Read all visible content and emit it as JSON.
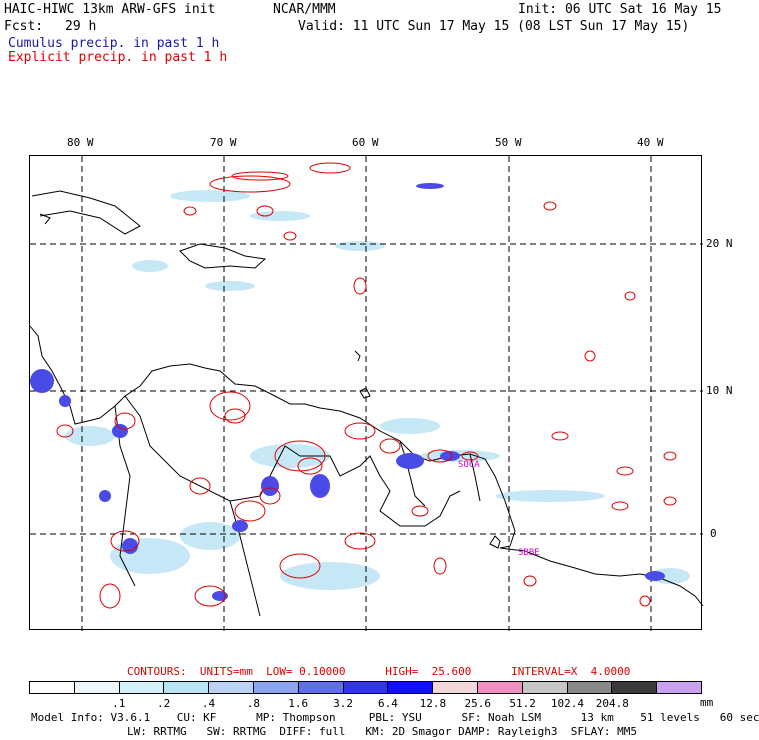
{
  "header": {
    "model": "HAIC-HIWC 13km ARW-GFS init",
    "org": "NCAR/MMM",
    "init": "Init: 06 UTC Sat 16 May 15",
    "fcst_label": "Fcst:",
    "fcst_value": "29 h",
    "valid": "Valid: 11 UTC Sun 17 May 15 (08 LST Sun 17 May 15)",
    "cumulus": "Cumulus precip. in past 1 h",
    "explicit": "Explicit precip. in past 1 h"
  },
  "map": {
    "lon_labels": [
      "80 W",
      "70 W",
      "60 W",
      "50 W",
      "40 W"
    ],
    "lat_labels": [
      "20 N",
      "10 N",
      "0"
    ],
    "station_labels": [
      "SOCA",
      "SBBE"
    ],
    "colors": {
      "cumulus": "#4040e0",
      "explicit": "#e00000",
      "light_blue": "#aee0f5"
    }
  },
  "footer": {
    "contours": "CONTOURS:  UNITS=mm  LOW= 0.10000      HIGH=  25.600      INTERVAL=X  4.0000",
    "colorbar": {
      "colors": [
        "#ffffff",
        "#eef8fc",
        "#d4f0f8",
        "#b8e4f4",
        "#b9d2f5",
        "#8ca4f0",
        "#6070ec",
        "#3036e8",
        "#1010f0",
        "#f2d6da",
        "#f090c0",
        "#c6c6c6",
        "#888888",
        "#3a3a3a",
        "#caa0f0"
      ],
      "labels": [
        ".1",
        ".2",
        ".4",
        ".8",
        "1.6",
        "3.2",
        "6.4",
        "12.8",
        "25.6",
        "51.2",
        "102.4",
        "204.8"
      ],
      "units": "mm"
    },
    "info_line1": "Model Info: V3.6.1    CU: KF      MP: Thompson     PBL: YSU      SF: Noah LSM      13 km    51 levels   60 sec",
    "info_line2": "LW: RRTMG   SW: RRTMG  DIFF: full   KM: 2D Smagor DAMP: Rayleigh3  SFLAY: MM5"
  }
}
